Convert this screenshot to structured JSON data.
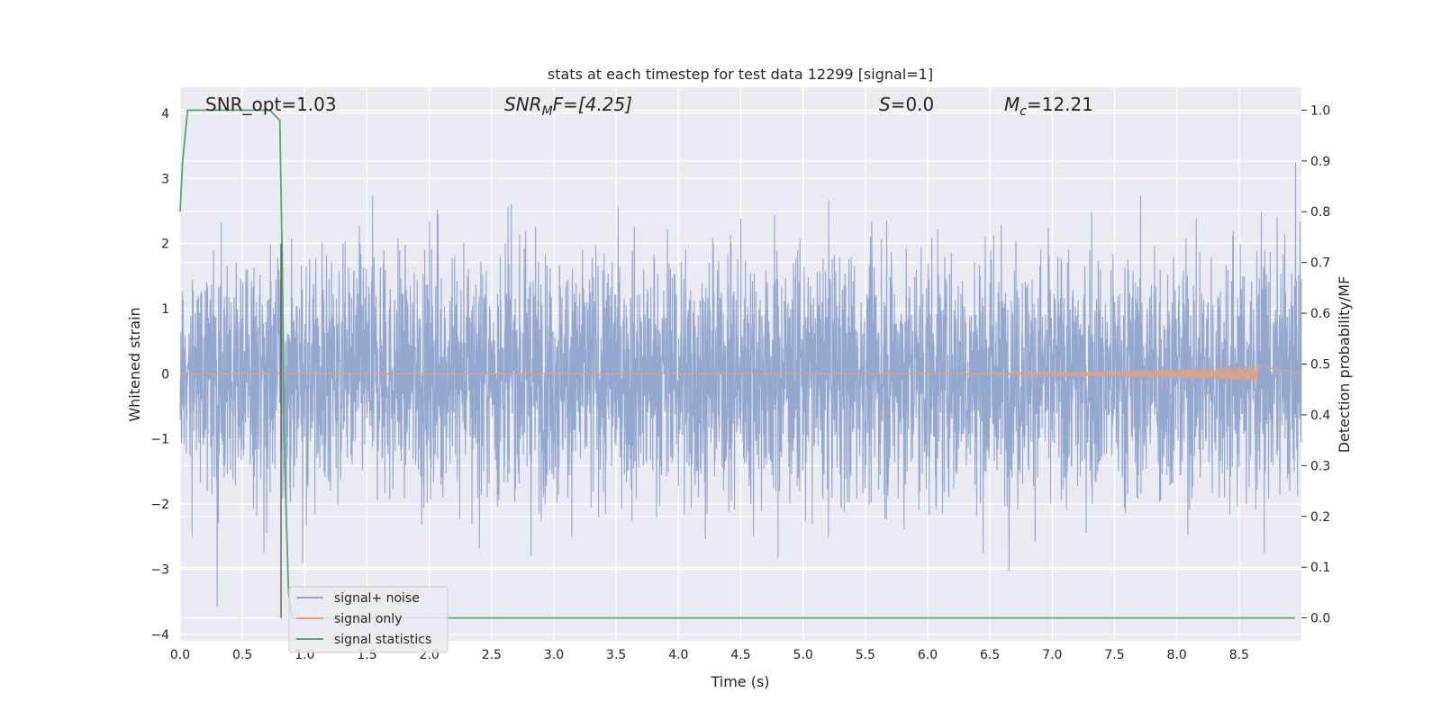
{
  "chart_data": {
    "type": "line",
    "title": "stats at each timestep for test data 12299 [signal=1]",
    "xlabel": "Time (s)",
    "ylabel": "Whitened strain",
    "y2label": "Detection probability/MF",
    "xlim": [
      0,
      9.0
    ],
    "ylim": [
      -4.1,
      4.4
    ],
    "y2lim": [
      -0.045,
      1.045
    ],
    "x_ticks": [
      0.0,
      0.5,
      1.0,
      1.5,
      2.0,
      2.5,
      3.0,
      3.5,
      4.0,
      4.5,
      5.0,
      5.5,
      6.0,
      6.5,
      7.0,
      7.5,
      8.0,
      8.5
    ],
    "x_tick_labels": [
      "0.0",
      "0.5",
      "1.0",
      "1.5",
      "2.0",
      "2.5",
      "3.0",
      "3.5",
      "4.0",
      "4.5",
      "5.0",
      "5.5",
      "6.0",
      "6.5",
      "7.0",
      "7.5",
      "8.0",
      "8.5"
    ],
    "y_ticks": [
      -4,
      -3,
      -2,
      -1,
      0,
      1,
      2,
      3,
      4
    ],
    "y_tick_labels": [
      "−4",
      "−3",
      "−2",
      "−1",
      "0",
      "1",
      "2",
      "3",
      "4"
    ],
    "y2_ticks": [
      0.0,
      0.1,
      0.2,
      0.3,
      0.4,
      0.5,
      0.6,
      0.7,
      0.8,
      0.9,
      1.0
    ],
    "y2_tick_labels": [
      "0.0",
      "0.1",
      "0.2",
      "0.3",
      "0.4",
      "0.5",
      "0.6",
      "0.7",
      "0.8",
      "0.9",
      "1.0"
    ],
    "grid": true,
    "legend_position": "lower-left",
    "annotations": {
      "snr_opt": "SNR_opt=1.03",
      "snr_mf_main": "SNR",
      "snr_mf_sub": "M",
      "snr_mf_tail": "F=[4.25]",
      "s_main": "S",
      "s_tail": "=0.0",
      "mc_main": "M",
      "mc_sub": "c",
      "mc_tail": "=12.21"
    },
    "vline_x": 0.81,
    "series": [
      {
        "name": "signal+ noise",
        "color": "#8fa3cc",
        "description_style": "dense-noise",
        "amplitude_std": 0.95,
        "x_range": [
          0,
          9.0
        ]
      },
      {
        "name": "signal only",
        "color": "#d4a48c",
        "chirp_end": 8.65,
        "chirp_peak_amplitude": 0.13
      },
      {
        "name": "signal statistics",
        "color": "#55a868",
        "axis": "right",
        "x": [
          0.0,
          0.02,
          0.06,
          0.1,
          0.2,
          0.4,
          0.6,
          0.72,
          0.8,
          0.82,
          0.84,
          0.87,
          0.9,
          1.0,
          2.0,
          4.0,
          6.0,
          8.0,
          8.95
        ],
        "values": [
          0.8,
          0.9,
          1.0,
          1.0,
          1.0,
          1.0,
          1.0,
          1.0,
          0.98,
          0.7,
          0.3,
          0.05,
          0.0,
          0.0,
          0.0,
          0.0,
          0.0,
          0.0,
          0.0
        ]
      }
    ]
  },
  "colors": {
    "plot_bg": "#eaeaf2",
    "grid": "#ffffff",
    "vline": "#555555"
  }
}
